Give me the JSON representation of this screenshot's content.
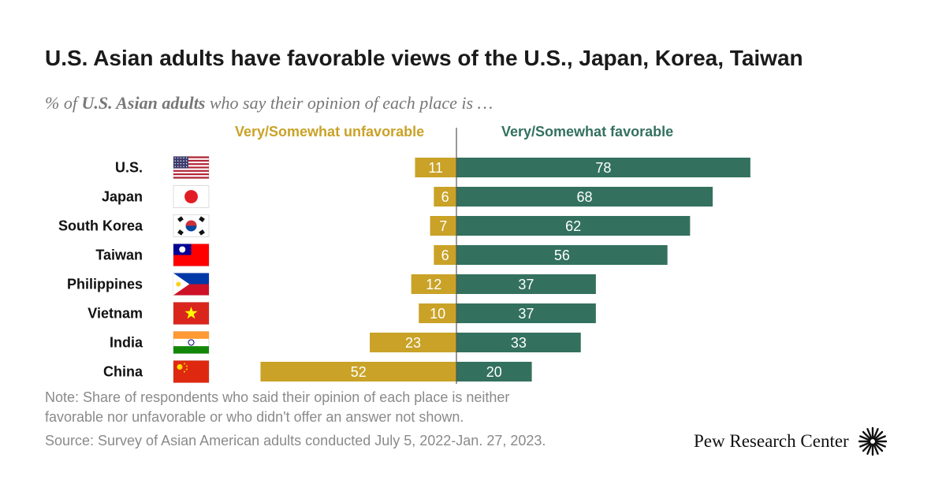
{
  "chart_data": {
    "type": "bar",
    "title": "U.S. Asian adults have favorable views of the U.S., Japan, Korea, Taiwan",
    "subtitle": {
      "prefix": "% of ",
      "emphasis": "U.S. Asian adults",
      "suffix": " who say their opinion of each place is …"
    },
    "categories": [
      "U.S.",
      "Japan",
      "South Korea",
      "Taiwan",
      "Philippines",
      "Vietnam",
      "India",
      "China"
    ],
    "flag_icons": [
      "us-flag-icon",
      "japan-flag-icon",
      "south-korea-flag-icon",
      "taiwan-flag-icon",
      "philippines-flag-icon",
      "vietnam-flag-icon",
      "india-flag-icon",
      "china-flag-icon"
    ],
    "series": [
      {
        "name": "Very/Somewhat unfavorable",
        "color": "#c9a227",
        "values": [
          11,
          6,
          7,
          6,
          12,
          10,
          23,
          52
        ]
      },
      {
        "name": "Very/Somewhat favorable",
        "color": "#33715e",
        "values": [
          78,
          68,
          62,
          56,
          37,
          37,
          33,
          20
        ]
      }
    ],
    "layout": "diverging",
    "legend_placement": "top",
    "grid": false
  },
  "footer": {
    "note_line1": "Note: Share of respondents who said their opinion of each place is neither",
    "note_line2": "favorable nor unfavorable or who didn't offer an answer not shown.",
    "source": "Source: Survey of Asian American adults conducted July 5, 2022-Jan. 27, 2023."
  },
  "logo": {
    "text": "Pew Research Center",
    "icon": "pew-sunburst-icon"
  }
}
